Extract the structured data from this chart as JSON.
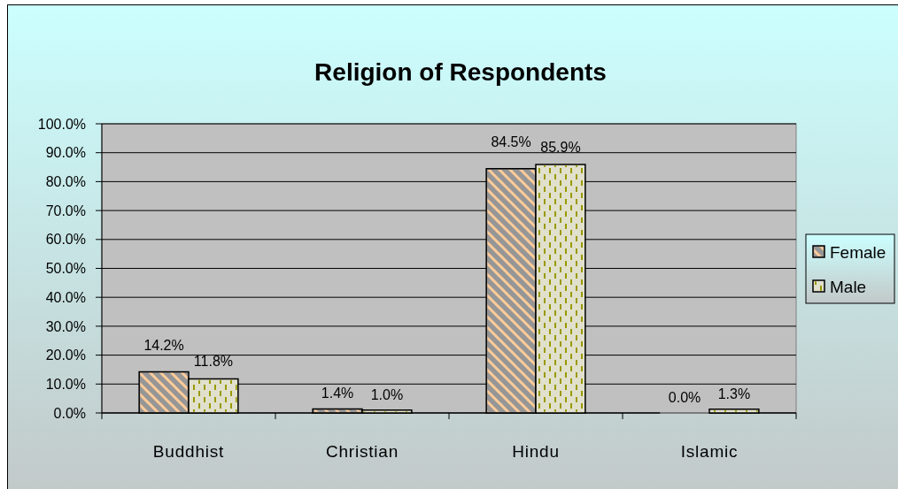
{
  "chart_data": {
    "type": "bar",
    "title": "Religion of Respondents",
    "categories": [
      "Buddhist",
      "Christian",
      "Hindu",
      "Islamic"
    ],
    "series": [
      {
        "name": "Female",
        "color": "#969696",
        "values": [
          14.2,
          1.4,
          84.5,
          0.0
        ],
        "value_labels": [
          "14.2%",
          "1.4%",
          "84.5%",
          "0.0%"
        ]
      },
      {
        "name": "Male",
        "color": "#e0e0cc",
        "values": [
          11.8,
          1.0,
          85.9,
          1.3
        ],
        "value_labels": [
          "11.8%",
          "1.0%",
          "85.9%",
          "1.3%"
        ]
      }
    ],
    "ylim": [
      0,
      100
    ],
    "yticks": [
      {
        "value": 0,
        "label": "0.0%"
      },
      {
        "value": 10,
        "label": "10.0%"
      },
      {
        "value": 20,
        "label": "20.0%"
      },
      {
        "value": 30,
        "label": "30.0%"
      },
      {
        "value": 40,
        "label": "40.0%"
      },
      {
        "value": 50,
        "label": "50.0%"
      },
      {
        "value": 60,
        "label": "60.0%"
      },
      {
        "value": 70,
        "label": "70.0%"
      },
      {
        "value": 80,
        "label": "80.0%"
      },
      {
        "value": 90,
        "label": "90.0%"
      },
      {
        "value": 100,
        "label": "100.0%"
      }
    ],
    "grid": "y",
    "legend": "right"
  }
}
